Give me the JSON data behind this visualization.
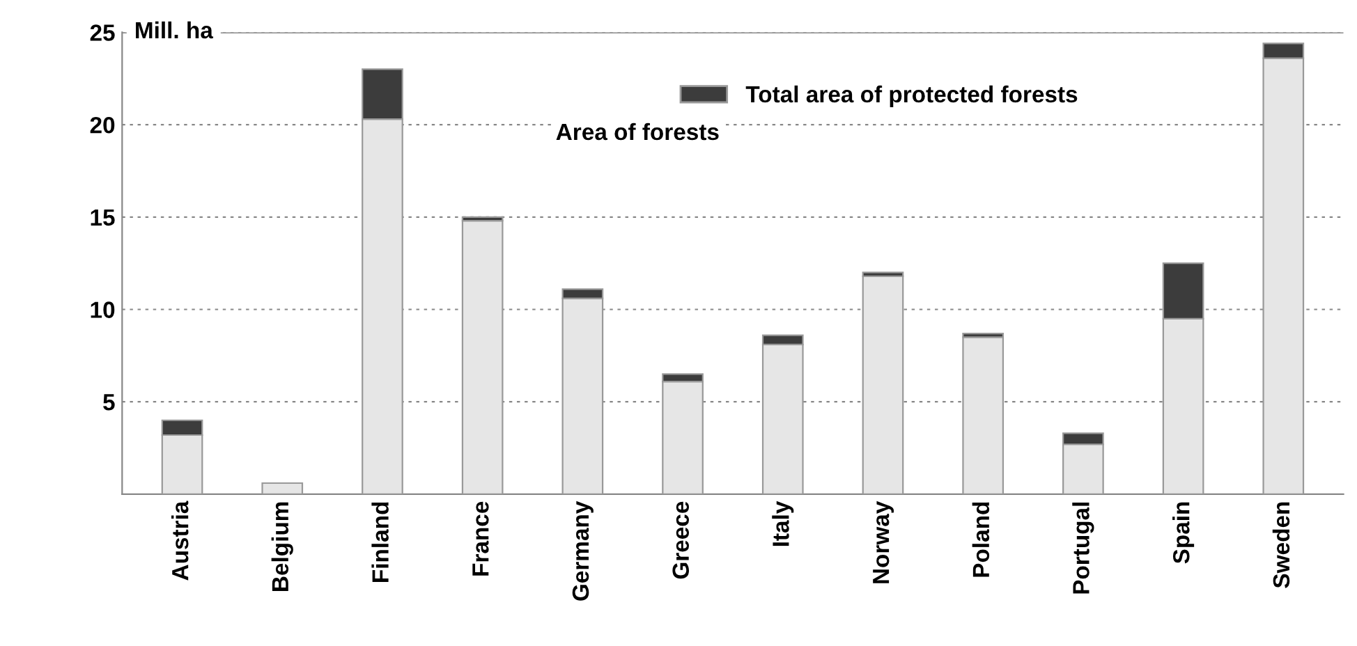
{
  "chart_data": {
    "type": "bar",
    "stacked": true,
    "ylabel": "Mill. ha",
    "categories": [
      "Austria",
      "Belgium",
      "Finland",
      "France",
      "Germany",
      "Greece",
      "Italy",
      "Norway",
      "Poland",
      "Portugal",
      "Spain",
      "Sweden"
    ],
    "series": [
      {
        "color": "#e6e6e6",
        "values": [
          3.2,
          0.6,
          20.3,
          14.8,
          10.6,
          6.1,
          8.1,
          11.8,
          8.5,
          2.7,
          9.5,
          23.6
        ]
      },
      {
        "name": "Total area of protected forests",
        "color": "#3c3c3c",
        "values": [
          0.8,
          null,
          2.7,
          0.2,
          0.5,
          0.4,
          0.5,
          0.2,
          0.2,
          0.6,
          3.0,
          0.8
        ]
      }
    ],
    "annotations": [
      "Area of forests"
    ],
    "ylim": [
      0,
      25
    ],
    "yticks": [
      5,
      10,
      15,
      20,
      25
    ],
    "grid": "y",
    "legend": "top"
  }
}
